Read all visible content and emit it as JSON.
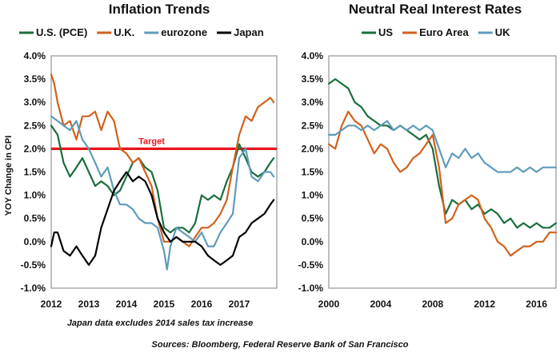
{
  "source": "Sources: Bloomberg, Federal Reserve Bank of San Francisco",
  "chart_data": [
    {
      "type": "line",
      "title": "Inflation Trends",
      "ylabel": "YOY Change in CPI",
      "xlabel": "",
      "note": "Japan data excludes 2014 sales tax increase",
      "x_ticks": [
        "2012",
        "2013",
        "2014",
        "2015",
        "2016",
        "2017"
      ],
      "y_ticks": [
        "-1.0%",
        "-0.5%",
        "0.0%",
        "0.5%",
        "1.0%",
        "1.5%",
        "2.0%",
        "2.5%",
        "3.0%",
        "3.5%",
        "4.0%"
      ],
      "xlim": [
        2012.0,
        2018.0
      ],
      "ylim": [
        -1.0,
        4.0
      ],
      "grid": false,
      "legend": "top",
      "reference_line": {
        "value": 2.0,
        "label": "Target",
        "color": "#e8161b"
      },
      "series": [
        {
          "name": "U.S. (PCE)",
          "color": "#1a6e3c",
          "x": [
            2012.0,
            2012.17,
            2012.33,
            2012.5,
            2012.67,
            2012.83,
            2013.0,
            2013.17,
            2013.33,
            2013.5,
            2013.67,
            2013.83,
            2014.0,
            2014.17,
            2014.33,
            2014.5,
            2014.67,
            2014.83,
            2015.0,
            2015.17,
            2015.33,
            2015.5,
            2015.67,
            2015.83,
            2016.0,
            2016.17,
            2016.33,
            2016.5,
            2016.67,
            2016.83,
            2017.0,
            2017.17,
            2017.33,
            2017.5,
            2017.67,
            2017.83,
            2017.92
          ],
          "y": [
            2.5,
            2.3,
            1.7,
            1.4,
            1.6,
            1.8,
            1.5,
            1.2,
            1.3,
            1.2,
            1.0,
            1.1,
            1.4,
            1.7,
            1.8,
            1.6,
            1.5,
            1.1,
            0.3,
            0.2,
            0.3,
            0.3,
            0.2,
            0.4,
            1.0,
            0.9,
            1.0,
            0.9,
            1.3,
            1.6,
            2.1,
            1.8,
            1.5,
            1.4,
            1.5,
            1.7,
            1.8
          ]
        },
        {
          "name": "U.K.",
          "color": "#d1611c",
          "x": [
            2012.0,
            2012.08,
            2012.17,
            2012.33,
            2012.5,
            2012.67,
            2012.83,
            2013.0,
            2013.17,
            2013.33,
            2013.5,
            2013.67,
            2013.83,
            2014.0,
            2014.17,
            2014.33,
            2014.5,
            2014.67,
            2014.83,
            2015.0,
            2015.17,
            2015.33,
            2015.5,
            2015.67,
            2015.83,
            2016.0,
            2016.17,
            2016.33,
            2016.5,
            2016.67,
            2016.83,
            2017.0,
            2017.17,
            2017.33,
            2017.5,
            2017.67,
            2017.83,
            2017.92
          ],
          "y": [
            3.6,
            3.4,
            3.0,
            2.5,
            2.6,
            2.2,
            2.7,
            2.7,
            2.8,
            2.4,
            2.8,
            2.6,
            2.0,
            1.9,
            1.7,
            1.8,
            1.5,
            1.2,
            0.5,
            0.0,
            0.0,
            0.1,
            0.0,
            -0.1,
            0.1,
            0.3,
            0.3,
            0.4,
            0.6,
            0.9,
            1.6,
            2.3,
            2.7,
            2.6,
            2.9,
            3.0,
            3.1,
            3.0
          ]
        },
        {
          "name": "eurozone",
          "color": "#5f9cba",
          "x": [
            2012.0,
            2012.17,
            2012.33,
            2012.5,
            2012.67,
            2012.83,
            2013.0,
            2013.17,
            2013.33,
            2013.5,
            2013.67,
            2013.83,
            2014.0,
            2014.17,
            2014.33,
            2014.5,
            2014.67,
            2014.83,
            2015.0,
            2015.08,
            2015.17,
            2015.33,
            2015.5,
            2015.67,
            2015.83,
            2016.0,
            2016.17,
            2016.33,
            2016.5,
            2016.67,
            2016.83,
            2017.0,
            2017.17,
            2017.33,
            2017.5,
            2017.67,
            2017.83,
            2017.92
          ],
          "y": [
            2.7,
            2.6,
            2.5,
            2.4,
            2.6,
            2.2,
            2.0,
            1.7,
            1.4,
            1.6,
            1.1,
            0.8,
            0.8,
            0.7,
            0.5,
            0.4,
            0.4,
            0.3,
            -0.2,
            -0.6,
            -0.1,
            0.3,
            0.2,
            0.1,
            0.0,
            0.2,
            -0.1,
            -0.1,
            0.2,
            0.4,
            0.6,
            1.8,
            2.0,
            1.4,
            1.3,
            1.5,
            1.5,
            1.4
          ]
        },
        {
          "name": "Japan",
          "color": "#000000",
          "x": [
            2012.0,
            2012.08,
            2012.17,
            2012.33,
            2012.5,
            2012.67,
            2012.83,
            2013.0,
            2013.17,
            2013.33,
            2013.5,
            2013.67,
            2013.83,
            2014.0,
            2014.17,
            2014.33,
            2014.5,
            2014.67,
            2014.83,
            2015.0,
            2015.17,
            2015.33,
            2015.5,
            2015.67,
            2015.83,
            2016.0,
            2016.17,
            2016.33,
            2016.5,
            2016.67,
            2016.83,
            2017.0,
            2017.17,
            2017.33,
            2017.5,
            2017.67,
            2017.83,
            2017.92
          ],
          "y": [
            -0.1,
            0.2,
            0.2,
            -0.2,
            -0.3,
            -0.1,
            -0.3,
            -0.5,
            -0.3,
            0.3,
            0.7,
            1.1,
            1.3,
            1.5,
            1.3,
            1.4,
            1.3,
            1.0,
            0.5,
            0.2,
            0.0,
            0.1,
            0.0,
            0.0,
            0.0,
            -0.1,
            -0.3,
            -0.4,
            -0.5,
            -0.4,
            -0.3,
            0.1,
            0.2,
            0.4,
            0.5,
            0.6,
            0.8,
            0.9
          ]
        }
      ]
    },
    {
      "type": "line",
      "title": "Neutral Real Interest Rates",
      "ylabel": "",
      "xlabel": "",
      "x_ticks": [
        "2000",
        "2004",
        "2008",
        "2012",
        "2016"
      ],
      "y_ticks": [
        "-1.0%",
        "-0.5%",
        "0.0%",
        "0.5%",
        "1.0%",
        "1.5%",
        "2.0%",
        "2.5%",
        "3.0%",
        "3.5%",
        "4.0%"
      ],
      "xlim": [
        2000.0,
        2017.5
      ],
      "ylim": [
        -1.0,
        4.0
      ],
      "grid": false,
      "legend": "top",
      "series": [
        {
          "name": "US",
          "color": "#1a6e3c",
          "x": [
            2000.0,
            2000.5,
            2001.0,
            2001.5,
            2002.0,
            2002.5,
            2003.0,
            2003.5,
            2004.0,
            2004.5,
            2005.0,
            2005.5,
            2006.0,
            2006.5,
            2007.0,
            2007.5,
            2008.0,
            2008.5,
            2009.0,
            2009.5,
            2010.0,
            2010.5,
            2011.0,
            2011.5,
            2012.0,
            2012.5,
            2013.0,
            2013.5,
            2014.0,
            2014.5,
            2015.0,
            2015.5,
            2016.0,
            2016.5,
            2017.0,
            2017.5
          ],
          "y": [
            3.4,
            3.5,
            3.4,
            3.3,
            3.0,
            2.9,
            2.7,
            2.6,
            2.5,
            2.5,
            2.4,
            2.5,
            2.4,
            2.3,
            2.2,
            2.3,
            2.0,
            1.2,
            0.6,
            0.9,
            0.8,
            0.9,
            0.7,
            0.8,
            0.6,
            0.7,
            0.6,
            0.4,
            0.5,
            0.3,
            0.4,
            0.3,
            0.4,
            0.3,
            0.3,
            0.4
          ]
        },
        {
          "name": "Euro Area",
          "color": "#d1611c",
          "x": [
            2000.0,
            2000.5,
            2001.0,
            2001.5,
            2002.0,
            2002.5,
            2003.0,
            2003.5,
            2004.0,
            2004.5,
            2005.0,
            2005.5,
            2006.0,
            2006.5,
            2007.0,
            2007.5,
            2008.0,
            2008.5,
            2009.0,
            2009.5,
            2010.0,
            2010.5,
            2011.0,
            2011.5,
            2012.0,
            2012.5,
            2013.0,
            2013.5,
            2014.0,
            2014.5,
            2015.0,
            2015.5,
            2016.0,
            2016.5,
            2017.0,
            2017.5
          ],
          "y": [
            2.1,
            2.0,
            2.5,
            2.8,
            2.6,
            2.5,
            2.2,
            1.9,
            2.1,
            2.0,
            1.7,
            1.5,
            1.6,
            1.8,
            1.9,
            2.1,
            2.3,
            1.6,
            0.4,
            0.5,
            0.8,
            0.9,
            1.0,
            0.9,
            0.5,
            0.3,
            0.0,
            -0.1,
            -0.3,
            -0.2,
            -0.1,
            -0.1,
            0.0,
            0.0,
            0.2,
            0.2
          ]
        },
        {
          "name": "UK",
          "color": "#5f9cba",
          "x": [
            2000.0,
            2000.5,
            2001.0,
            2001.5,
            2002.0,
            2002.5,
            2003.0,
            2003.5,
            2004.0,
            2004.5,
            2005.0,
            2005.5,
            2006.0,
            2006.5,
            2007.0,
            2007.5,
            2008.0,
            2008.5,
            2009.0,
            2009.5,
            2010.0,
            2010.5,
            2011.0,
            2011.5,
            2012.0,
            2012.5,
            2013.0,
            2013.5,
            2014.0,
            2014.5,
            2015.0,
            2015.5,
            2016.0,
            2016.5,
            2017.0,
            2017.5
          ],
          "y": [
            2.3,
            2.3,
            2.4,
            2.5,
            2.5,
            2.4,
            2.5,
            2.4,
            2.5,
            2.6,
            2.4,
            2.5,
            2.4,
            2.5,
            2.4,
            2.5,
            2.4,
            2.0,
            1.6,
            1.9,
            1.8,
            2.0,
            1.8,
            1.9,
            1.7,
            1.6,
            1.5,
            1.5,
            1.5,
            1.6,
            1.5,
            1.6,
            1.5,
            1.6,
            1.6,
            1.6
          ]
        }
      ]
    }
  ]
}
